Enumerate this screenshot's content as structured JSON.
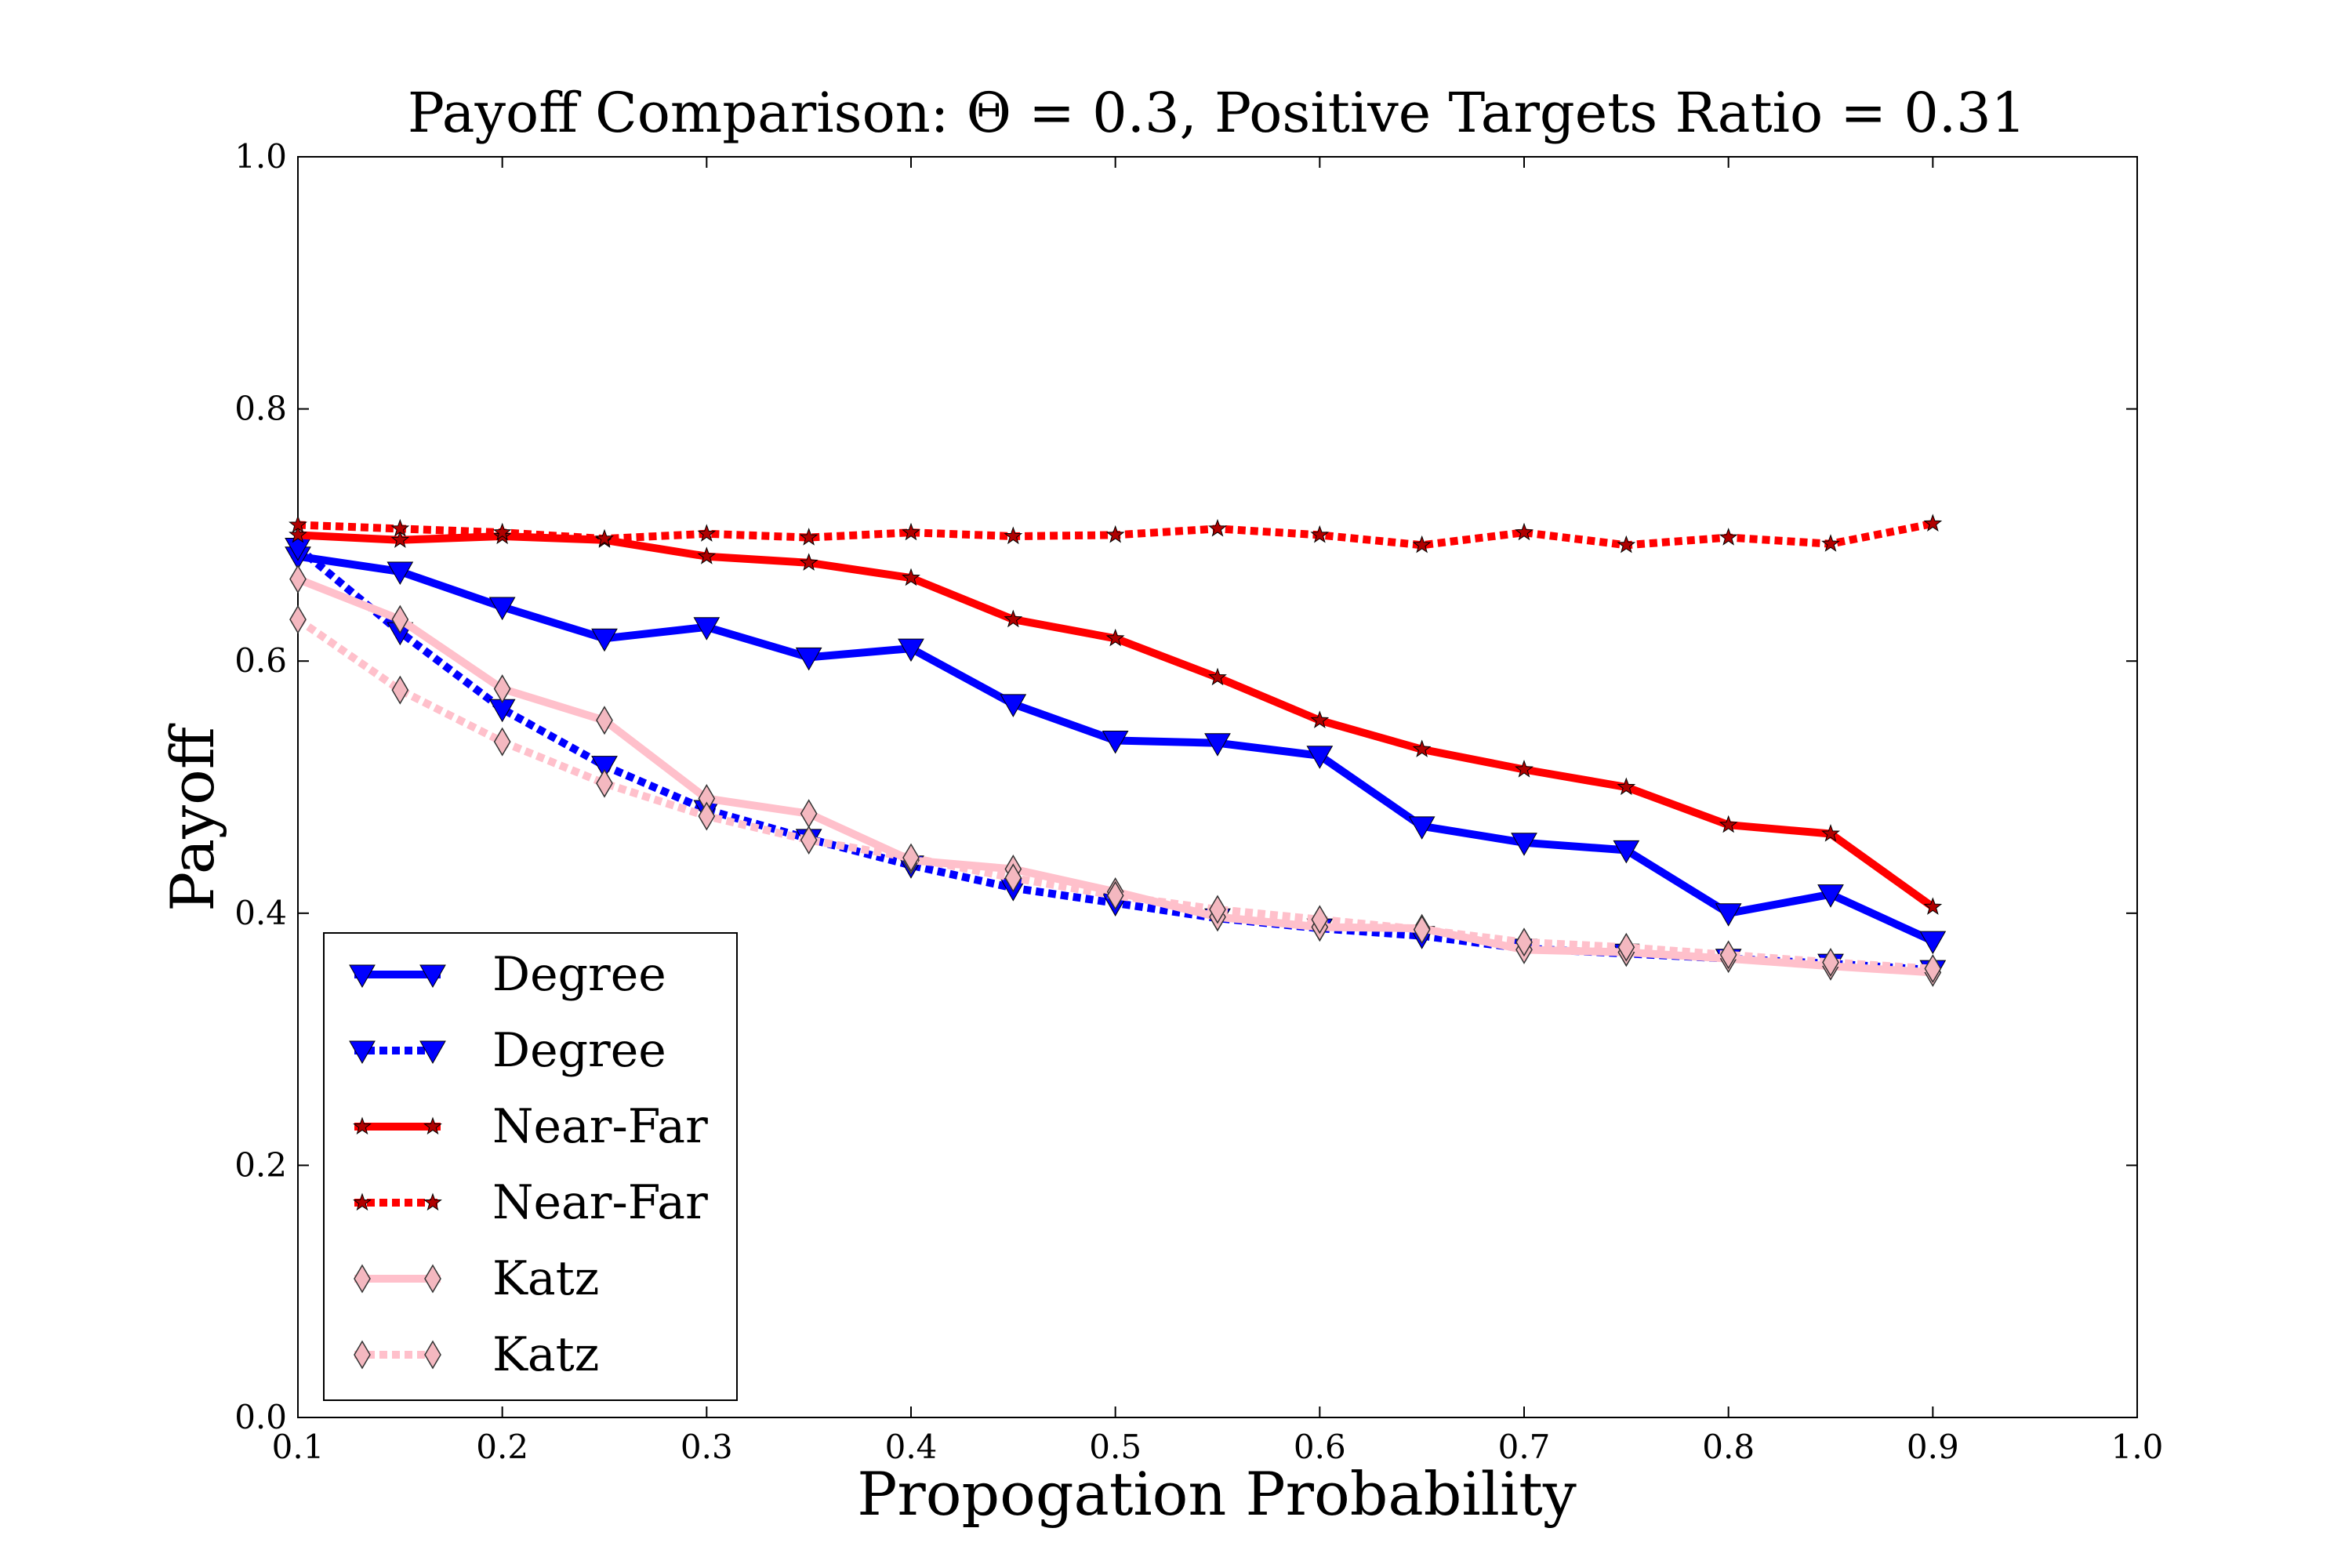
{
  "chart_data": {
    "type": "line",
    "title": "Payoff Comparison: Θ = 0.3, Positive Targets Ratio = 0.31",
    "xlabel": "Propogation Probability",
    "ylabel": "Payoff",
    "xlim": [
      0.1,
      1.0
    ],
    "ylim": [
      0.0,
      1.0
    ],
    "xticks": [
      "0.1",
      "0.2",
      "0.3",
      "0.4",
      "0.5",
      "0.6",
      "0.7",
      "0.8",
      "0.9",
      "1.0"
    ],
    "yticks": [
      "0.0",
      "0.2",
      "0.4",
      "0.6",
      "0.8",
      "1.0"
    ],
    "grid": false,
    "legend_position": "lower-left",
    "x": [
      0.1,
      0.15,
      0.2,
      0.25,
      0.3,
      0.35,
      0.4,
      0.45,
      0.5,
      0.55,
      0.6,
      0.65,
      0.7,
      0.75,
      0.8,
      0.85,
      0.9
    ],
    "series": [
      {
        "name": "Degree",
        "color": "#0000ff",
        "style": "solid",
        "marker": "triangle-down",
        "values": [
          0.683,
          0.671,
          0.643,
          0.618,
          0.627,
          0.603,
          0.61,
          0.566,
          0.537,
          0.535,
          0.525,
          0.469,
          0.456,
          0.45,
          0.4,
          0.415,
          0.378
        ]
      },
      {
        "name": "Degree",
        "color": "#0000ff",
        "style": "dotted",
        "marker": "triangle-down",
        "values": [
          0.69,
          0.623,
          0.562,
          0.517,
          0.482,
          0.459,
          0.438,
          0.42,
          0.408,
          0.396,
          0.388,
          0.382,
          0.372,
          0.368,
          0.364,
          0.36,
          0.355
        ]
      },
      {
        "name": "Near-Far",
        "color": "#ff0000",
        "style": "solid",
        "marker": "star",
        "values": [
          0.7,
          0.696,
          0.699,
          0.696,
          0.683,
          0.678,
          0.666,
          0.633,
          0.618,
          0.587,
          0.553,
          0.53,
          0.514,
          0.5,
          0.47,
          0.463,
          0.405
        ]
      },
      {
        "name": "Near-Far",
        "color": "#ff0000",
        "style": "dotted",
        "marker": "star",
        "values": [
          0.708,
          0.705,
          0.702,
          0.697,
          0.701,
          0.698,
          0.702,
          0.699,
          0.7,
          0.705,
          0.7,
          0.692,
          0.702,
          0.692,
          0.698,
          0.693,
          0.709
        ]
      },
      {
        "name": "Katz",
        "color": "#ffc0cb",
        "style": "solid",
        "marker": "thin-diamond",
        "values": [
          0.665,
          0.633,
          0.578,
          0.553,
          0.491,
          0.479,
          0.442,
          0.435,
          0.417,
          0.397,
          0.389,
          0.388,
          0.371,
          0.369,
          0.364,
          0.358,
          0.353
        ]
      },
      {
        "name": "Katz",
        "color": "#ffc0cb",
        "style": "dotted",
        "marker": "thin-diamond",
        "values": [
          0.633,
          0.577,
          0.536,
          0.503,
          0.477,
          0.458,
          0.444,
          0.428,
          0.414,
          0.403,
          0.395,
          0.387,
          0.377,
          0.373,
          0.367,
          0.361,
          0.356
        ]
      }
    ]
  }
}
